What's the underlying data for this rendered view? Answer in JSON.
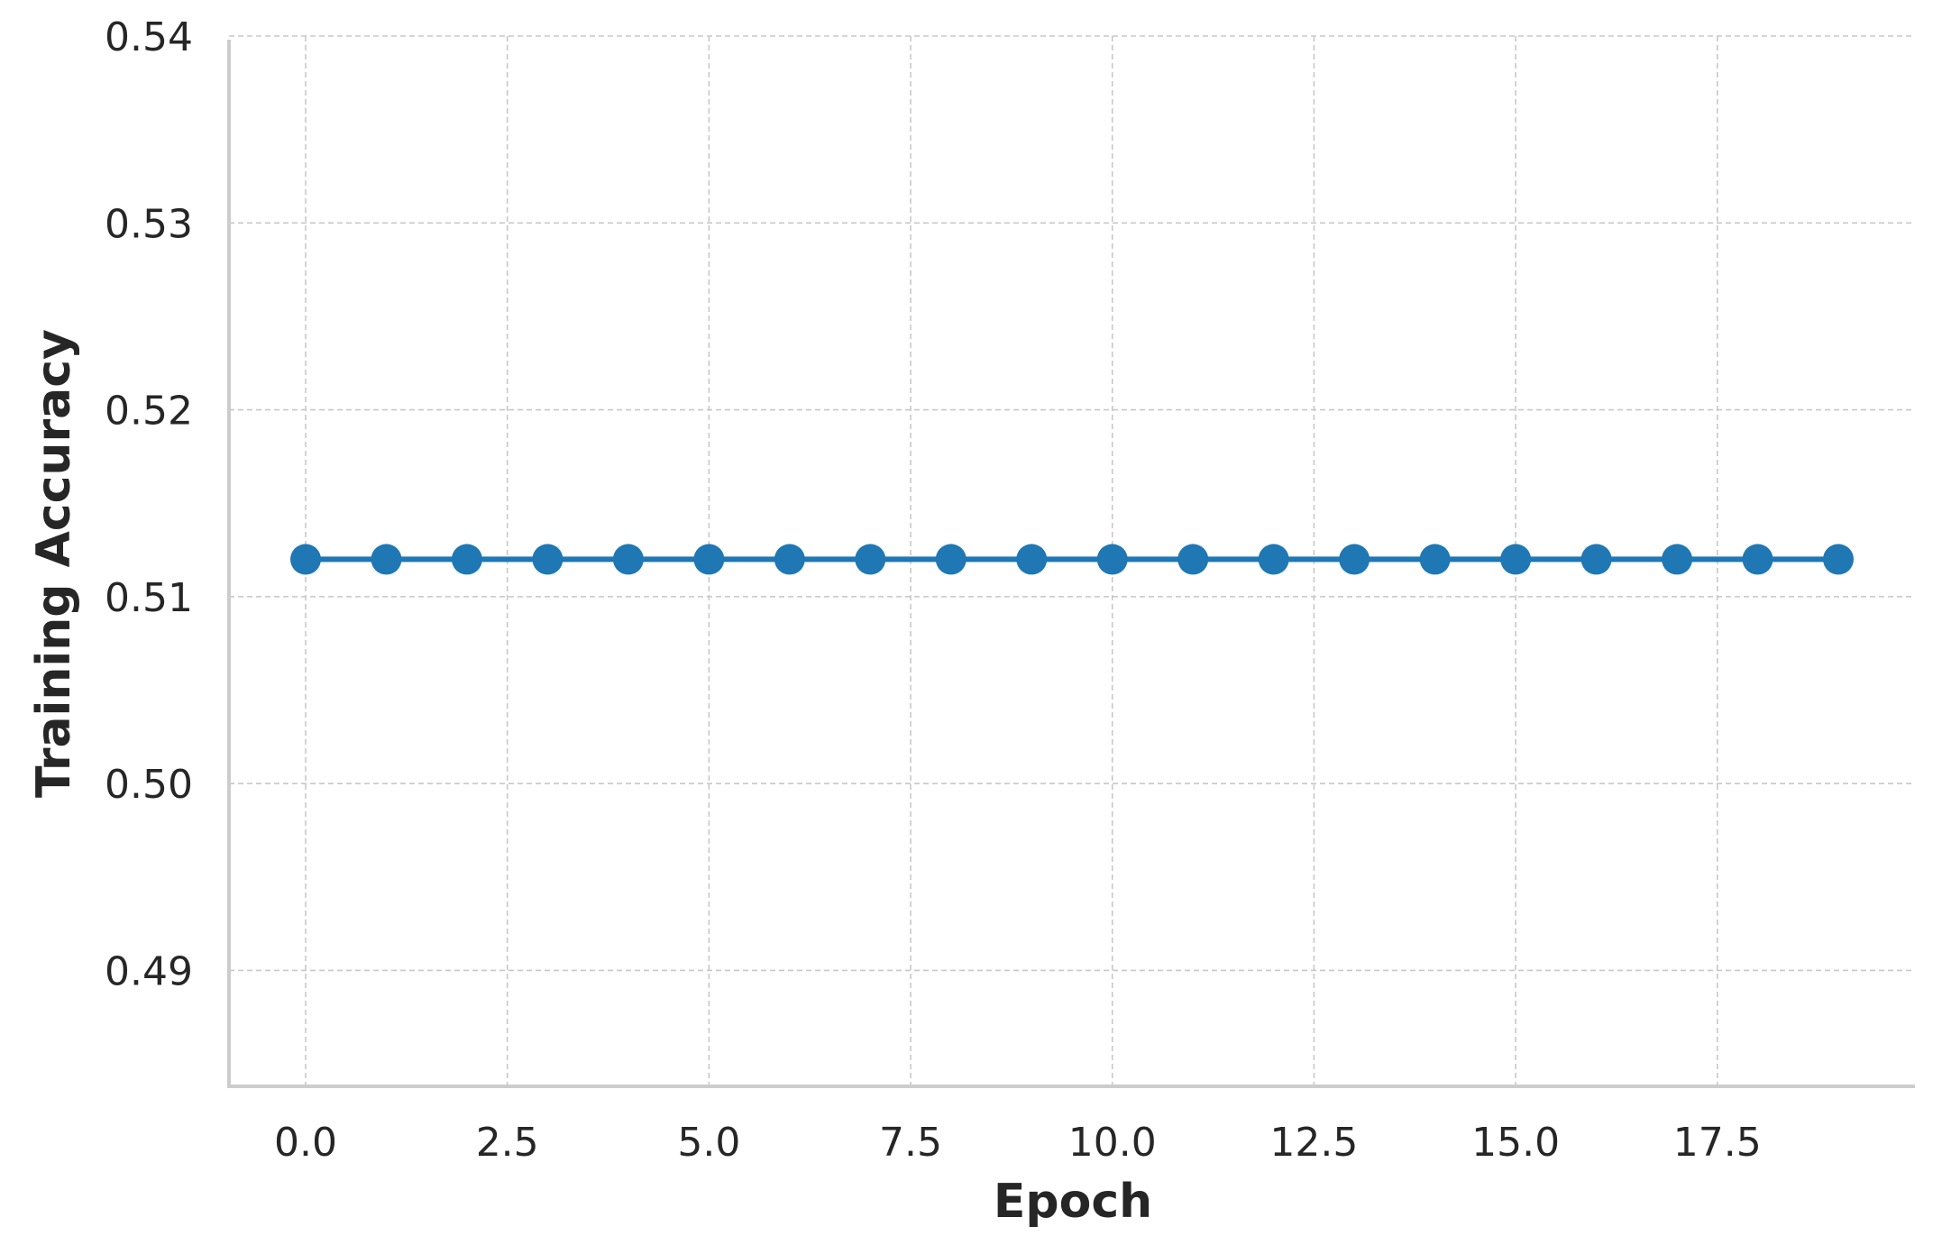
{
  "chart_data": {
    "type": "line",
    "title": "",
    "xlabel": "Epoch",
    "ylabel": "Training Accuracy",
    "xlim": [
      -0.95,
      19.95
    ],
    "ylim": [
      0.4838,
      0.54
    ],
    "xticks": [
      0.0,
      2.5,
      5.0,
      7.5,
      10.0,
      12.5,
      15.0,
      17.5
    ],
    "xtick_labels": [
      "0.0",
      "2.5",
      "5.0",
      "7.5",
      "10.0",
      "12.5",
      "15.0",
      "17.5"
    ],
    "yticks": [
      0.49,
      0.5,
      0.51,
      0.52,
      0.53,
      0.54
    ],
    "ytick_labels": [
      "0.49",
      "0.50",
      "0.51",
      "0.52",
      "0.53",
      "0.54"
    ],
    "grid": true,
    "colors": {
      "series": "#1f77b4",
      "grid": "#c8c8c8",
      "spine": "#cccccc",
      "text": "#262626"
    },
    "series": [
      {
        "x": [
          0,
          1,
          2,
          3,
          4,
          5,
          6,
          7,
          8,
          9,
          10,
          11,
          12,
          13,
          14,
          15,
          16,
          17,
          18,
          19
        ],
        "values": [
          0.512,
          0.512,
          0.512,
          0.512,
          0.512,
          0.512,
          0.512,
          0.512,
          0.512,
          0.512,
          0.512,
          0.512,
          0.512,
          0.512,
          0.512,
          0.512,
          0.512,
          0.512,
          0.512,
          0.512
        ],
        "marker": "circle"
      }
    ]
  }
}
